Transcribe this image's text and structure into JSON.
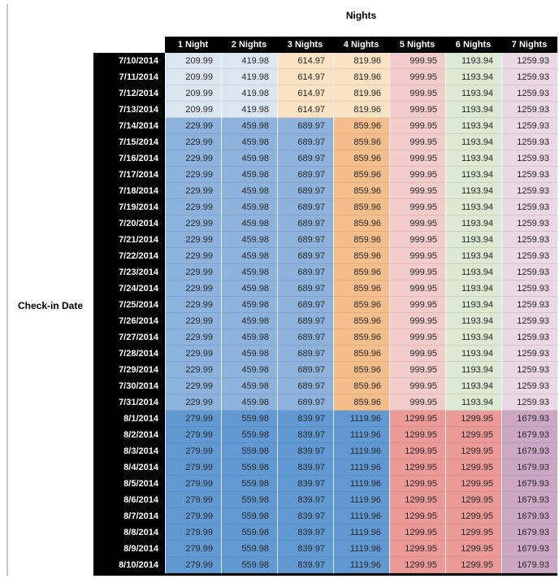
{
  "title": "Nights",
  "side_label": "Check-in Date",
  "style": {
    "header_bg": "#000000",
    "header_text": "#ffffff",
    "cell_text": "#262626",
    "decorative_line": "#c9c9c9",
    "tier_colors": {
      "low": [
        "#DCE6F1",
        "#DCE6F1",
        "#FAE3C2",
        "#FAE3C2",
        "#F1CCCB",
        "#DCEAD3",
        "#EAD8E4"
      ],
      "mid": [
        "#8DB3DD",
        "#8DB3DD",
        "#8DB3DD",
        "#F4BE8C",
        "#F1CCCB",
        "#DCEAD3",
        "#EAD8E4"
      ],
      "high": [
        "#6199D2",
        "#6199D2",
        "#6199D2",
        "#6199D2",
        "#EC9A97",
        "#EC9A97",
        "#CBA7C3"
      ]
    }
  },
  "chart_data": {
    "type": "table",
    "title": "Nights",
    "row_axis_label": "Check-in Date",
    "columns": [
      "1 Night",
      "2 Nights",
      "3 Nights",
      "4 Nights",
      "5 Nights",
      "6 Nights",
      "7 Nights"
    ],
    "rows": [
      {
        "date": "7/10/2014",
        "tier": "low",
        "values": [
          "209.99",
          "419.98",
          "614.97",
          "819.96",
          "999.95",
          "1193.94",
          "1259.93"
        ]
      },
      {
        "date": "7/11/2014",
        "tier": "low",
        "values": [
          "209.99",
          "419.98",
          "614.97",
          "819.96",
          "999.95",
          "1193.94",
          "1259.93"
        ]
      },
      {
        "date": "7/12/2014",
        "tier": "low",
        "values": [
          "209.99",
          "419.98",
          "614.97",
          "819.96",
          "999.95",
          "1193.94",
          "1259.93"
        ]
      },
      {
        "date": "7/13/2014",
        "tier": "low",
        "values": [
          "209.99",
          "419.98",
          "614.97",
          "819.96",
          "999.95",
          "1193.94",
          "1259.93"
        ]
      },
      {
        "date": "7/14/2014",
        "tier": "mid",
        "values": [
          "229.99",
          "459.98",
          "689.97",
          "859.96",
          "999.95",
          "1193.94",
          "1259.93"
        ]
      },
      {
        "date": "7/15/2014",
        "tier": "mid",
        "values": [
          "229.99",
          "459.98",
          "689.97",
          "859.96",
          "999.95",
          "1193.94",
          "1259.93"
        ]
      },
      {
        "date": "7/16/2014",
        "tier": "mid",
        "values": [
          "229.99",
          "459.98",
          "689.97",
          "859.96",
          "999.95",
          "1193.94",
          "1259.93"
        ]
      },
      {
        "date": "7/17/2014",
        "tier": "mid",
        "values": [
          "229.99",
          "459.98",
          "689.97",
          "859.96",
          "999.95",
          "1193.94",
          "1259.93"
        ]
      },
      {
        "date": "7/18/2014",
        "tier": "mid",
        "values": [
          "229.99",
          "459.98",
          "689.97",
          "859.96",
          "999.95",
          "1193.94",
          "1259.93"
        ]
      },
      {
        "date": "7/19/2014",
        "tier": "mid",
        "values": [
          "229.99",
          "459.98",
          "689.97",
          "859.96",
          "999.95",
          "1193.94",
          "1259.93"
        ]
      },
      {
        "date": "7/20/2014",
        "tier": "mid",
        "values": [
          "229.99",
          "459.98",
          "689.97",
          "859.96",
          "999.95",
          "1193.94",
          "1259.93"
        ]
      },
      {
        "date": "7/21/2014",
        "tier": "mid",
        "values": [
          "229.99",
          "459.98",
          "689.97",
          "859.96",
          "999.95",
          "1193.94",
          "1259.93"
        ]
      },
      {
        "date": "7/22/2014",
        "tier": "mid",
        "values": [
          "229.99",
          "459.98",
          "689.97",
          "859.96",
          "999.95",
          "1193.94",
          "1259.93"
        ]
      },
      {
        "date": "7/23/2014",
        "tier": "mid",
        "values": [
          "229.99",
          "459.98",
          "689.97",
          "859.96",
          "999.95",
          "1193.94",
          "1259.93"
        ]
      },
      {
        "date": "7/24/2014",
        "tier": "mid",
        "values": [
          "229.99",
          "459.98",
          "689.97",
          "859.96",
          "999.95",
          "1193.94",
          "1259.93"
        ]
      },
      {
        "date": "7/25/2014",
        "tier": "mid",
        "values": [
          "229.99",
          "459.98",
          "689.97",
          "859.96",
          "999.95",
          "1193.94",
          "1259.93"
        ]
      },
      {
        "date": "7/26/2014",
        "tier": "mid",
        "values": [
          "229.99",
          "459.98",
          "689.97",
          "859.96",
          "999.95",
          "1193.94",
          "1259.93"
        ]
      },
      {
        "date": "7/27/2014",
        "tier": "mid",
        "values": [
          "229.99",
          "459.98",
          "689.97",
          "859.96",
          "999.95",
          "1193.94",
          "1259.93"
        ]
      },
      {
        "date": "7/28/2014",
        "tier": "mid",
        "values": [
          "229.99",
          "459.98",
          "689.97",
          "859.96",
          "999.95",
          "1193.94",
          "1259.93"
        ]
      },
      {
        "date": "7/29/2014",
        "tier": "mid",
        "values": [
          "229.99",
          "459.98",
          "689.97",
          "859.96",
          "999.95",
          "1193.94",
          "1259.93"
        ]
      },
      {
        "date": "7/30/2014",
        "tier": "mid",
        "values": [
          "229.99",
          "459.98",
          "689.97",
          "859.96",
          "999.95",
          "1193.94",
          "1259.93"
        ]
      },
      {
        "date": "7/31/2014",
        "tier": "mid",
        "values": [
          "229.99",
          "459.98",
          "689.97",
          "859.96",
          "999.95",
          "1193.94",
          "1259.93"
        ]
      },
      {
        "date": "8/1/2014",
        "tier": "high",
        "values": [
          "279.99",
          "559.98",
          "839.97",
          "1119.96",
          "1299.95",
          "1299.95",
          "1679.93"
        ]
      },
      {
        "date": "8/2/2014",
        "tier": "high",
        "values": [
          "279.99",
          "559.98",
          "839.97",
          "1119.96",
          "1299.95",
          "1299.95",
          "1679.93"
        ]
      },
      {
        "date": "8/3/2014",
        "tier": "high",
        "values": [
          "279.99",
          "559.98",
          "839.97",
          "1119.96",
          "1299.95",
          "1299.95",
          "1679.93"
        ]
      },
      {
        "date": "8/4/2014",
        "tier": "high",
        "values": [
          "279.99",
          "559.98",
          "839.97",
          "1119.96",
          "1299.95",
          "1299.95",
          "1679.93"
        ]
      },
      {
        "date": "8/5/2014",
        "tier": "high",
        "values": [
          "279.99",
          "559.98",
          "839.97",
          "1119.96",
          "1299.95",
          "1299.95",
          "1679.93"
        ]
      },
      {
        "date": "8/6/2014",
        "tier": "high",
        "values": [
          "279.99",
          "559.98",
          "839.97",
          "1119.96",
          "1299.95",
          "1299.95",
          "1679.93"
        ]
      },
      {
        "date": "8/7/2014",
        "tier": "high",
        "values": [
          "279.99",
          "559.98",
          "839.97",
          "1119.96",
          "1299.95",
          "1299.95",
          "1679.93"
        ]
      },
      {
        "date": "8/8/2014",
        "tier": "high",
        "values": [
          "279.99",
          "559.98",
          "839.97",
          "1119.96",
          "1299.95",
          "1299.95",
          "1679.93"
        ]
      },
      {
        "date": "8/9/2014",
        "tier": "high",
        "values": [
          "279.99",
          "559.98",
          "839.97",
          "1119.96",
          "1299.95",
          "1299.95",
          "1679.93"
        ]
      },
      {
        "date": "8/10/2014",
        "tier": "high",
        "values": [
          "279.99",
          "559.98",
          "839.97",
          "1119.96",
          "1299.95",
          "1299.95",
          "1679.93"
        ]
      }
    ]
  }
}
